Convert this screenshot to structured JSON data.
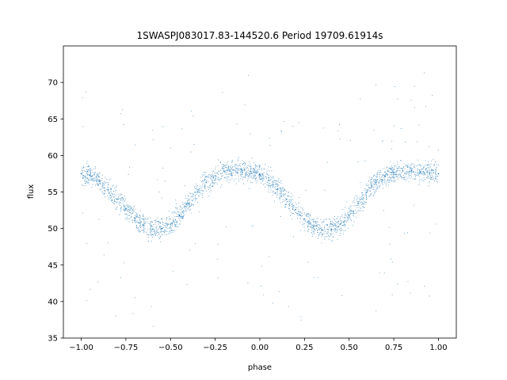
{
  "chart_data": {
    "type": "scatter",
    "title": "1SWASPJ083017.83-144520.6 Period 19709.61914s",
    "xlabel": "phase",
    "ylabel": "flux",
    "xlim": [
      -1.1,
      1.1
    ],
    "ylim": [
      35,
      75
    ],
    "xticks": [
      -1.0,
      -0.75,
      -0.5,
      -0.25,
      0.0,
      0.25,
      0.5,
      0.75,
      1.0
    ],
    "xtick_labels": [
      "−1.00",
      "−0.75",
      "−0.50",
      "−0.25",
      "0.00",
      "0.25",
      "0.50",
      "0.75",
      "1.00"
    ],
    "yticks": [
      35,
      40,
      45,
      50,
      55,
      60,
      65,
      70
    ],
    "ytick_labels": [
      "35",
      "40",
      "45",
      "50",
      "55",
      "60",
      "65",
      "70"
    ],
    "grid": false,
    "marker_color": "#1f77b4",
    "series": [
      {
        "x": [
          -1.0,
          -0.95,
          -0.9,
          -0.85,
          -0.8,
          -0.75,
          -0.7,
          -0.65,
          -0.6,
          -0.55,
          -0.5,
          -0.45,
          -0.4,
          -0.35,
          -0.3,
          -0.25,
          -0.2,
          -0.15,
          -0.1,
          -0.05,
          0.0,
          0.05,
          0.1,
          0.15,
          0.2,
          0.25,
          0.3,
          0.35,
          0.4,
          0.45,
          0.5,
          0.55,
          0.6,
          0.65,
          0.7,
          0.75,
          0.8,
          0.85,
          0.9,
          0.95,
          1.0
        ],
        "values": [
          57.5,
          57.3,
          56.5,
          55.3,
          54.0,
          52.7,
          51.4,
          50.4,
          49.9,
          50.0,
          50.6,
          51.8,
          53.4,
          55.0,
          56.3,
          57.2,
          57.8,
          58.0,
          58.0,
          57.8,
          57.4,
          56.6,
          55.4,
          54.0,
          52.6,
          51.3,
          50.3,
          49.8,
          49.9,
          50.6,
          51.8,
          53.4,
          55.0,
          56.3,
          57.2,
          57.7,
          57.9,
          57.9,
          57.8,
          57.6,
          57.5
        ]
      }
    ]
  }
}
